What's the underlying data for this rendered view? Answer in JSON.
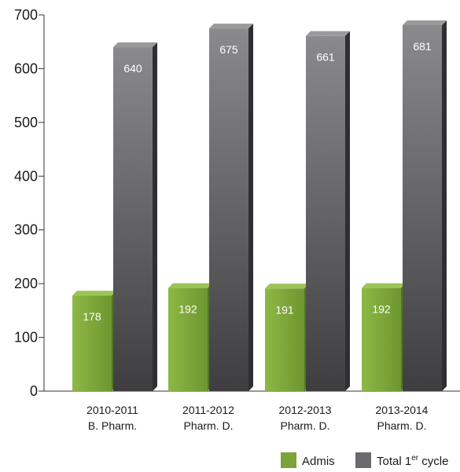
{
  "chart_data": {
    "type": "bar",
    "categories": [
      [
        "2010-2011",
        "B. Pharm."
      ],
      [
        "2011-2012",
        "Pharm. D."
      ],
      [
        "2012-2013",
        "Pharm. D."
      ],
      [
        "2013-2014",
        "Pharm. D."
      ]
    ],
    "series": [
      {
        "name": "Admis",
        "values": [
          178,
          192,
          191,
          192
        ],
        "color": "#7aa33a"
      },
      {
        "name": "Total 1er cycle",
        "legend_base": "Total 1",
        "legend_sup": "er",
        "legend_tail": " cycle",
        "values": [
          640,
          675,
          661,
          681
        ],
        "color": "#6b6b6d"
      }
    ],
    "ylim": [
      0,
      700
    ],
    "yticks": [
      0,
      100,
      200,
      300,
      400,
      500,
      600,
      700
    ],
    "grid": false,
    "legend_position": "bottom-right",
    "title": "",
    "xlabel": "",
    "ylabel": ""
  }
}
